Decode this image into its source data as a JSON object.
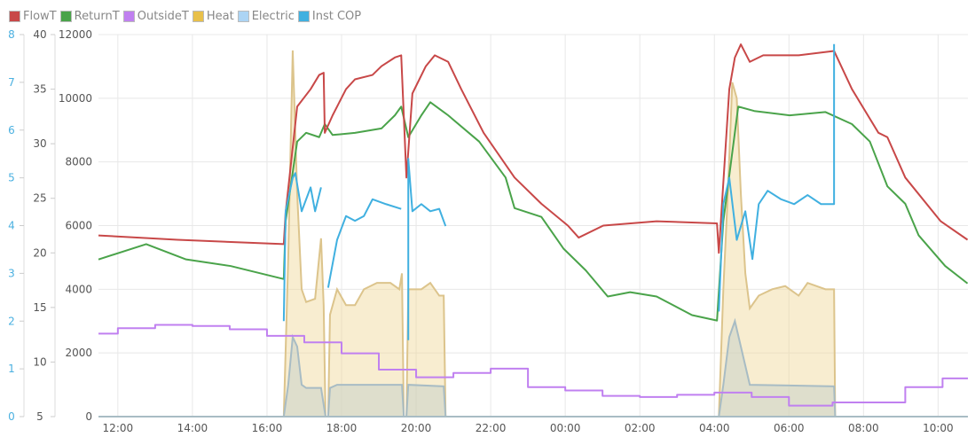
{
  "chart_data": {
    "type": "line",
    "x_unit": "hours since 12:00",
    "x_range": [
      -0.52,
      22.8
    ],
    "x_ticks": [
      {
        "t": 0,
        "label": "12:00"
      },
      {
        "t": 2,
        "label": "14:00"
      },
      {
        "t": 4,
        "label": "16:00"
      },
      {
        "t": 6,
        "label": "18:00"
      },
      {
        "t": 8,
        "label": "20:00"
      },
      {
        "t": 10,
        "label": "22:00"
      },
      {
        "t": 12,
        "label": "00:00"
      },
      {
        "t": 14,
        "label": "02:00"
      },
      {
        "t": 16,
        "label": "04:00"
      },
      {
        "t": 18,
        "label": "06:00"
      },
      {
        "t": 20,
        "label": "08:00"
      },
      {
        "t": 22,
        "label": "10:00"
      }
    ],
    "axes": {
      "cop": {
        "range": [
          0,
          8
        ],
        "ticks": [
          "0",
          "1",
          "2",
          "3",
          "4",
          "5",
          "6",
          "7",
          "8"
        ],
        "color": "#4ab0e0"
      },
      "temp": {
        "range": [
          5,
          40
        ],
        "ticks": [
          "5",
          "10",
          "15",
          "20",
          "25",
          "30",
          "35",
          "40"
        ]
      },
      "power": {
        "range": [
          0,
          12000
        ],
        "ticks": [
          "0",
          "2000",
          "4000",
          "6000",
          "8000",
          "10000",
          "12000"
        ]
      }
    },
    "grid": true,
    "legend_position": "top-left",
    "series": [
      {
        "name": "FlowT",
        "color": "#c84848",
        "axis": "temp",
        "kind": "line",
        "points": [
          [
            -0.52,
            21.6
          ],
          [
            1.6,
            21.2
          ],
          [
            4.45,
            20.8
          ],
          [
            4.5,
            23.7
          ],
          [
            4.81,
            33.4
          ],
          [
            5.17,
            35.0
          ],
          [
            5.4,
            36.3
          ],
          [
            5.52,
            36.5
          ],
          [
            5.55,
            31.0
          ],
          [
            5.76,
            32.6
          ],
          [
            6.12,
            35.0
          ],
          [
            6.36,
            35.9
          ],
          [
            6.83,
            36.3
          ],
          [
            7.07,
            37.1
          ],
          [
            7.43,
            37.9
          ],
          [
            7.6,
            38.1
          ],
          [
            7.74,
            26.9
          ],
          [
            7.9,
            34.6
          ],
          [
            8.26,
            37.1
          ],
          [
            8.5,
            38.1
          ],
          [
            8.86,
            37.5
          ],
          [
            9.21,
            35.0
          ],
          [
            9.81,
            31.0
          ],
          [
            10.64,
            26.9
          ],
          [
            11.36,
            24.5
          ],
          [
            12.07,
            22.5
          ],
          [
            12.36,
            21.4
          ],
          [
            13.02,
            22.5
          ],
          [
            14.45,
            22.9
          ],
          [
            16.07,
            22.7
          ],
          [
            16.12,
            20.0
          ],
          [
            16.4,
            35.0
          ],
          [
            16.55,
            37.9
          ],
          [
            16.71,
            39.1
          ],
          [
            16.95,
            37.5
          ],
          [
            17.31,
            38.1
          ],
          [
            18.26,
            38.1
          ],
          [
            19.21,
            38.5
          ],
          [
            19.69,
            35.0
          ],
          [
            20.4,
            31.0
          ],
          [
            20.64,
            30.6
          ],
          [
            21.12,
            26.9
          ],
          [
            22.07,
            22.9
          ],
          [
            22.79,
            21.2
          ]
        ]
      },
      {
        "name": "ReturnT",
        "color": "#4aa34a",
        "axis": "temp",
        "kind": "line",
        "points": [
          [
            -0.52,
            19.4
          ],
          [
            0.76,
            20.8
          ],
          [
            1.83,
            19.4
          ],
          [
            3.02,
            18.8
          ],
          [
            4.45,
            17.6
          ],
          [
            4.5,
            22.9
          ],
          [
            4.81,
            30.2
          ],
          [
            5.05,
            31.0
          ],
          [
            5.4,
            30.6
          ],
          [
            5.55,
            31.8
          ],
          [
            5.76,
            30.8
          ],
          [
            6.36,
            31.0
          ],
          [
            7.07,
            31.4
          ],
          [
            7.43,
            32.6
          ],
          [
            7.6,
            33.4
          ],
          [
            7.79,
            30.6
          ],
          [
            8.14,
            32.6
          ],
          [
            8.38,
            33.8
          ],
          [
            8.86,
            32.6
          ],
          [
            9.69,
            30.2
          ],
          [
            10.4,
            26.9
          ],
          [
            10.64,
            24.1
          ],
          [
            11.36,
            23.3
          ],
          [
            11.95,
            20.4
          ],
          [
            12.55,
            18.4
          ],
          [
            13.14,
            16.0
          ],
          [
            13.74,
            16.4
          ],
          [
            14.45,
            16.0
          ],
          [
            15.4,
            14.3
          ],
          [
            16.07,
            13.8
          ],
          [
            16.24,
            22.9
          ],
          [
            16.64,
            33.4
          ],
          [
            17.07,
            33.0
          ],
          [
            18.02,
            32.6
          ],
          [
            18.98,
            32.9
          ],
          [
            19.69,
            31.8
          ],
          [
            20.17,
            30.2
          ],
          [
            20.64,
            26.1
          ],
          [
            21.12,
            24.5
          ],
          [
            21.48,
            21.6
          ],
          [
            22.19,
            18.8
          ],
          [
            22.79,
            17.2
          ]
        ]
      },
      {
        "name": "OutsideT",
        "color": "#c080f0",
        "axis": "temp",
        "kind": "step",
        "points": [
          [
            -0.52,
            12.6
          ],
          [
            0,
            13.1
          ],
          [
            1,
            13.4
          ],
          [
            2,
            13.3
          ],
          [
            3,
            13.0
          ],
          [
            4,
            12.4
          ],
          [
            5,
            11.8
          ],
          [
            6,
            10.8
          ],
          [
            7,
            9.3
          ],
          [
            8,
            8.6
          ],
          [
            9,
            9.0
          ],
          [
            10,
            9.4
          ],
          [
            11,
            7.7
          ],
          [
            12,
            7.4
          ],
          [
            13,
            6.9
          ],
          [
            14,
            6.8
          ],
          [
            15,
            7.0
          ],
          [
            16,
            7.2
          ],
          [
            17,
            6.8
          ],
          [
            18,
            6.0
          ],
          [
            19.17,
            6.3
          ],
          [
            21.12,
            7.7
          ],
          [
            22.12,
            8.5
          ],
          [
            22.8,
            8.5
          ]
        ]
      },
      {
        "name": "Heat",
        "color": "#e8c04a",
        "axis": "power",
        "kind": "area",
        "points": [
          [
            -0.52,
            0
          ],
          [
            4.45,
            0
          ],
          [
            4.57,
            5000
          ],
          [
            4.69,
            11500
          ],
          [
            4.81,
            7000
          ],
          [
            4.93,
            4000
          ],
          [
            5.05,
            3600
          ],
          [
            5.29,
            3700
          ],
          [
            5.45,
            5600
          ],
          [
            5.52,
            3500
          ],
          [
            5.57,
            0
          ],
          [
            5.64,
            0
          ],
          [
            5.69,
            3200
          ],
          [
            5.88,
            4000
          ],
          [
            6.12,
            3500
          ],
          [
            6.36,
            3500
          ],
          [
            6.6,
            4000
          ],
          [
            6.95,
            4200
          ],
          [
            7.31,
            4200
          ],
          [
            7.55,
            4000
          ],
          [
            7.62,
            4500
          ],
          [
            7.67,
            0
          ],
          [
            7.74,
            0
          ],
          [
            7.79,
            4000
          ],
          [
            7.9,
            4000
          ],
          [
            8.14,
            4000
          ],
          [
            8.38,
            4200
          ],
          [
            8.62,
            3800
          ],
          [
            8.74,
            3800
          ],
          [
            8.79,
            0
          ],
          [
            16.12,
            0
          ],
          [
            16.24,
            4000
          ],
          [
            16.36,
            7000
          ],
          [
            16.48,
            10500
          ],
          [
            16.6,
            10000
          ],
          [
            16.71,
            7000
          ],
          [
            16.83,
            4500
          ],
          [
            16.95,
            3400
          ],
          [
            17.19,
            3800
          ],
          [
            17.55,
            4000
          ],
          [
            17.9,
            4100
          ],
          [
            18.26,
            3800
          ],
          [
            18.5,
            4200
          ],
          [
            18.98,
            4000
          ],
          [
            19.21,
            4000
          ],
          [
            19.24,
            0
          ],
          [
            22.8,
            0
          ]
        ]
      },
      {
        "name": "Electric",
        "color": "#acd4f4",
        "axis": "power",
        "kind": "area",
        "points": [
          [
            -0.52,
            0
          ],
          [
            4.45,
            0
          ],
          [
            4.57,
            1000
          ],
          [
            4.69,
            2500
          ],
          [
            4.81,
            2200
          ],
          [
            4.93,
            1000
          ],
          [
            5.05,
            900
          ],
          [
            5.45,
            900
          ],
          [
            5.57,
            0
          ],
          [
            5.64,
            0
          ],
          [
            5.69,
            900
          ],
          [
            5.88,
            1000
          ],
          [
            7.62,
            1000
          ],
          [
            7.67,
            0
          ],
          [
            7.74,
            0
          ],
          [
            7.79,
            1000
          ],
          [
            8.74,
            950
          ],
          [
            8.79,
            0
          ],
          [
            16.12,
            0
          ],
          [
            16.24,
            1000
          ],
          [
            16.4,
            2500
          ],
          [
            16.55,
            3000
          ],
          [
            16.71,
            2200
          ],
          [
            16.95,
            1000
          ],
          [
            19.21,
            950
          ],
          [
            19.24,
            0
          ],
          [
            22.8,
            0
          ]
        ]
      },
      {
        "name": "Inst COP",
        "color": "#40b0e0",
        "axis": "cop",
        "kind": "line",
        "points": [
          [
            4.45,
            2.0
          ],
          [
            4.5,
            4.3
          ],
          [
            4.69,
            5.0
          ],
          [
            4.76,
            5.1
          ],
          [
            4.93,
            4.3
          ],
          [
            5.17,
            4.8
          ],
          [
            5.29,
            4.3
          ],
          [
            5.45,
            4.8
          ],
          null,
          [
            5.64,
            2.7
          ],
          [
            5.88,
            3.7
          ],
          [
            6.12,
            4.2
          ],
          [
            6.36,
            4.1
          ],
          [
            6.6,
            4.2
          ],
          [
            6.83,
            4.55
          ],
          [
            7.19,
            4.45
          ],
          [
            7.6,
            4.35
          ],
          null,
          [
            7.79,
            1.6
          ],
          [
            7.79,
            5.4
          ],
          [
            7.9,
            4.3
          ],
          [
            8.14,
            4.45
          ],
          [
            8.38,
            4.3
          ],
          [
            8.62,
            4.35
          ],
          [
            8.79,
            3.99
          ],
          null,
          [
            16.12,
            2.2
          ],
          [
            16.24,
            4.45
          ],
          [
            16.4,
            5.0
          ],
          [
            16.6,
            3.7
          ],
          [
            16.83,
            4.3
          ],
          [
            17.02,
            3.3
          ],
          [
            17.19,
            4.45
          ],
          [
            17.43,
            4.73
          ],
          [
            17.79,
            4.55
          ],
          [
            18.14,
            4.45
          ],
          [
            18.5,
            4.64
          ],
          [
            18.86,
            4.45
          ],
          [
            19.21,
            4.45
          ],
          [
            19.21,
            7.8
          ]
        ]
      }
    ]
  }
}
